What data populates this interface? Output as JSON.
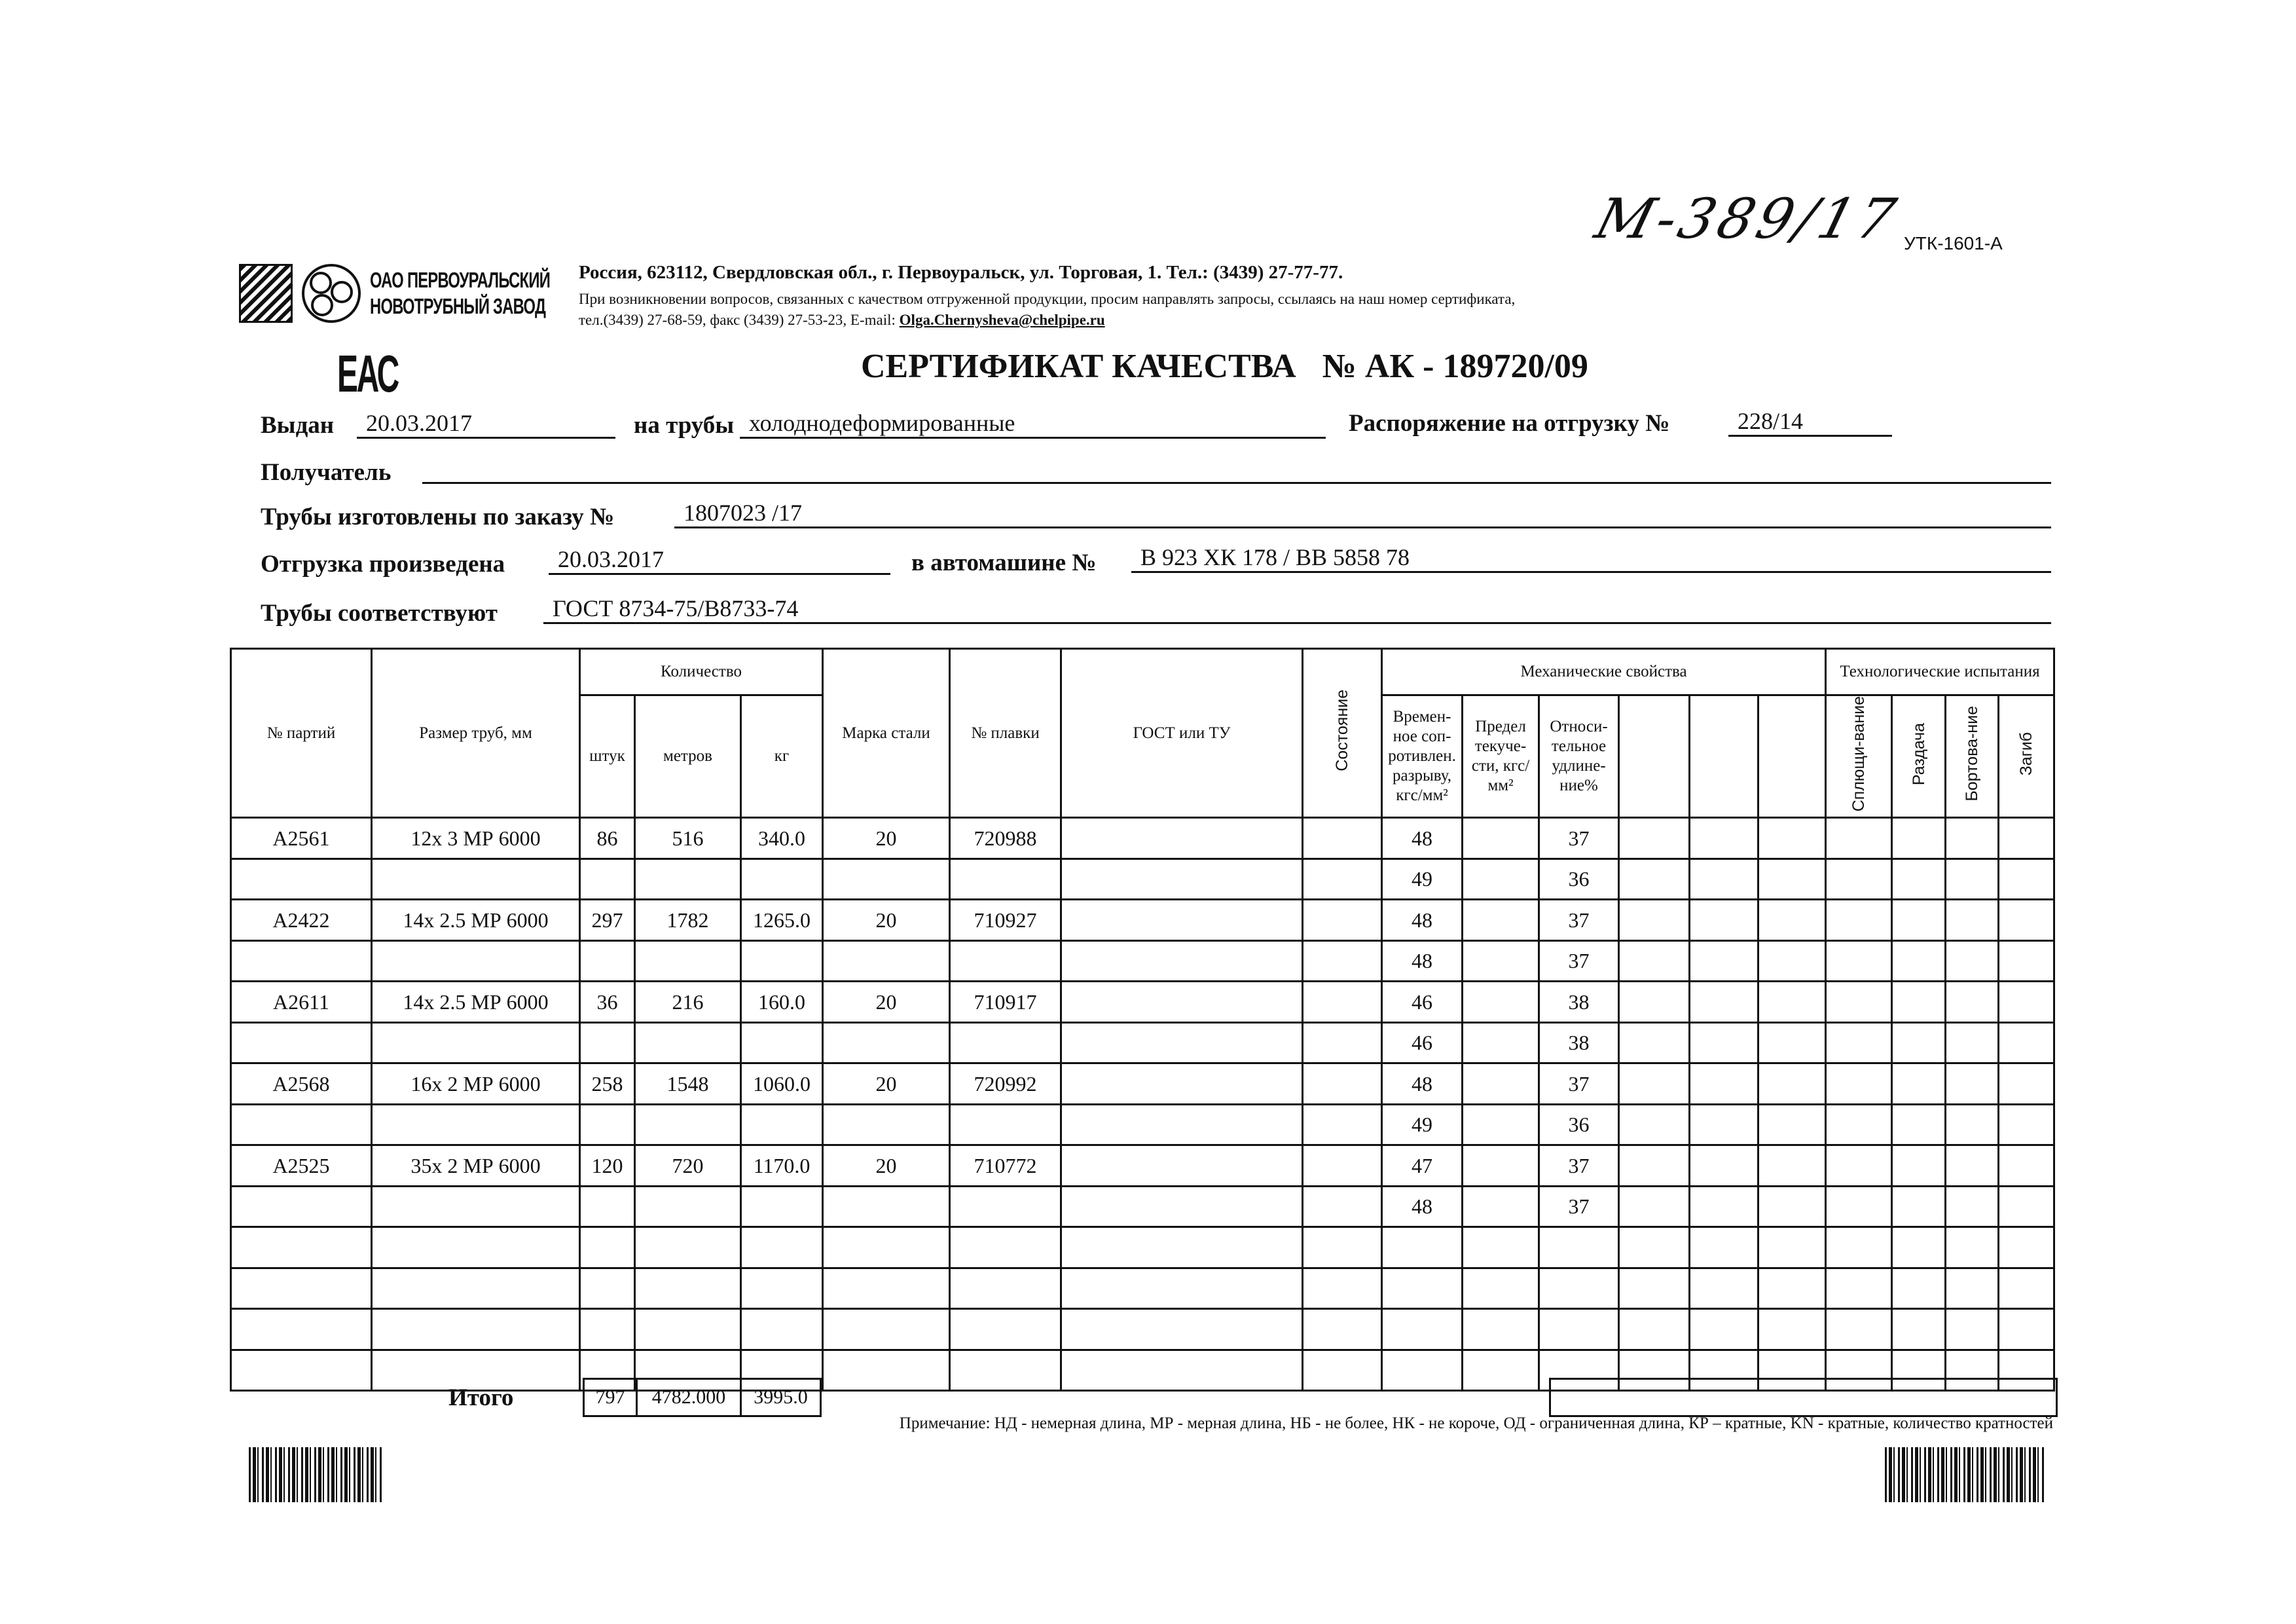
{
  "header": {
    "company_name_line1": "ОАО ПЕРВОУРАЛЬСКИЙ",
    "company_name_line2": "НОВОТРУБНЫЙ ЗАВОД",
    "address": "Россия, 623112, Свердловская обл., г. Первоуральск, ул. Торговая, 1. Тел.: (3439) 27-77-77.",
    "notice": "При возникновении вопросов, связанных с качеством отгруженной продукции, просим направлять запросы, ссылаясь на наш номер сертификата,",
    "contacts": "тел.(3439) 27-68-59, факс (3439) 27-53-23,  E-mail: ",
    "email": "Olga.Chernysheva@chelpipe.ru",
    "handwritten_number": "М-389/17",
    "form_code": "УТК-1601-А",
    "eac_mark": "ЕАС"
  },
  "title": {
    "label": "СЕРТИФИКАТ КАЧЕСТВА",
    "number": "№  АК -  189720/09"
  },
  "fields": {
    "issued_label": "Выдан",
    "issued_value": "20.03.2017",
    "pipes_label": "на трубы",
    "pipes_value": "холоднодеформированные",
    "order_label": "Распоряжение на отгрузку №",
    "order_value": "228/14",
    "recipient_label": "Получатель",
    "recipient_value": "",
    "made_label": "Трубы изготовлены по заказу №",
    "made_value": "1807023   /17",
    "shipment_label": "Отгрузка произведена",
    "shipment_value": "20.03.2017",
    "vehicle_label": "в автомашине №",
    "vehicle_value": "В 923 ХК 178 / ВВ 5858 78",
    "conform_label": "Трубы соответствуют",
    "conform_value": "ГОСТ 8734-75/В8733-74"
  },
  "table": {
    "headers": {
      "batch": "№ партий",
      "size": "Размер труб, мм",
      "quantity": "Количество",
      "pcs": "штук",
      "meters": "метров",
      "kg": "кг",
      "steel": "Марка стали",
      "heat": "№ плавки",
      "gost": "ГОСТ или ТУ",
      "state": "Состояние",
      "mech": "Механические свойства",
      "tensile": "Времен-ное соп-ротивлен. разрыву, кгс/мм²",
      "yield": "Предел текуче-сти, кгс/мм²",
      "elong": "Относи-тельное удлине-ние%",
      "tech": "Технологические испытания",
      "flatten": "Сплющи-вание",
      "expand": "Раздача",
      "flange": "Бортова-ние",
      "bend": "Загиб"
    },
    "rows": [
      {
        "batch": "А2561",
        "size": "12х 3 МР 6000",
        "pcs": "86",
        "meters": "516",
        "kg": "340.0",
        "steel": "20",
        "heat": "720988",
        "tensile": "48",
        "elong": "37"
      },
      {
        "batch": "",
        "size": "",
        "pcs": "",
        "meters": "",
        "kg": "",
        "steel": "",
        "heat": "",
        "tensile": "49",
        "elong": "36"
      },
      {
        "batch": "А2422",
        "size": "14х 2.5 МР 6000",
        "pcs": "297",
        "meters": "1782",
        "kg": "1265.0",
        "steel": "20",
        "heat": "710927",
        "tensile": "48",
        "elong": "37"
      },
      {
        "batch": "",
        "size": "",
        "pcs": "",
        "meters": "",
        "kg": "",
        "steel": "",
        "heat": "",
        "tensile": "48",
        "elong": "37"
      },
      {
        "batch": "А2611",
        "size": "14х 2.5 МР 6000",
        "pcs": "36",
        "meters": "216",
        "kg": "160.0",
        "steel": "20",
        "heat": "710917",
        "tensile": "46",
        "elong": "38"
      },
      {
        "batch": "",
        "size": "",
        "pcs": "",
        "meters": "",
        "kg": "",
        "steel": "",
        "heat": "",
        "tensile": "46",
        "elong": "38"
      },
      {
        "batch": "А2568",
        "size": "16х 2 МР 6000",
        "pcs": "258",
        "meters": "1548",
        "kg": "1060.0",
        "steel": "20",
        "heat": "720992",
        "tensile": "48",
        "elong": "37"
      },
      {
        "batch": "",
        "size": "",
        "pcs": "",
        "meters": "",
        "kg": "",
        "steel": "",
        "heat": "",
        "tensile": "49",
        "elong": "36"
      },
      {
        "batch": "А2525",
        "size": "35х 2 МР 6000",
        "pcs": "120",
        "meters": "720",
        "kg": "1170.0",
        "steel": "20",
        "heat": "710772",
        "tensile": "47",
        "elong": "37"
      },
      {
        "batch": "",
        "size": "",
        "pcs": "",
        "meters": "",
        "kg": "",
        "steel": "",
        "heat": "",
        "tensile": "48",
        "elong": "37"
      },
      {},
      {},
      {},
      {}
    ],
    "totals": {
      "label": "Итого",
      "pcs": "797",
      "meters": "4782.000",
      "kg": "3995.0"
    }
  },
  "note": "Примечание: НД - немерная длина, МР - мерная длина, НБ - не более, НК - не короче, ОД - ограниченная длина, КР – кратные, KN - кратные, количество кратностей"
}
